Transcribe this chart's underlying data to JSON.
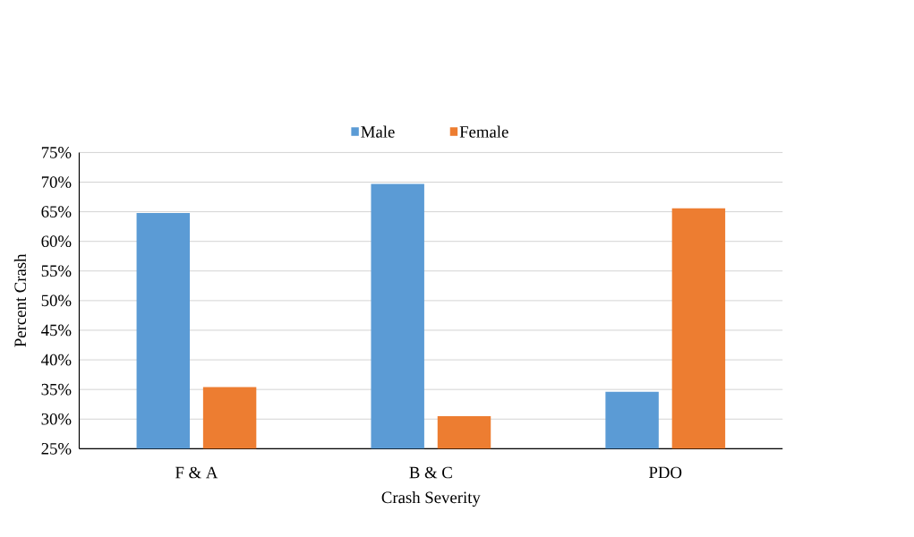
{
  "chart_data": {
    "type": "bar",
    "xlabel": "Crash Severity",
    "ylabel": "Percent Crash",
    "categories": [
      "F & A",
      "B & C",
      "PDO"
    ],
    "series": [
      {
        "name": "Male",
        "color": "#5b9bd5",
        "values": [
          64.8,
          69.7,
          34.6
        ]
      },
      {
        "name": "Female",
        "color": "#ed7d31",
        "values": [
          35.4,
          30.5,
          65.6
        ]
      }
    ],
    "ylim": [
      25,
      75
    ],
    "yticks": [
      {
        "value": 25,
        "label": "25%"
      },
      {
        "value": 30,
        "label": "30%"
      },
      {
        "value": 35,
        "label": "35%"
      },
      {
        "value": 40,
        "label": "40%"
      },
      {
        "value": 45,
        "label": "45%"
      },
      {
        "value": 50,
        "label": "50%"
      },
      {
        "value": 55,
        "label": "55%"
      },
      {
        "value": 60,
        "label": "60%"
      },
      {
        "value": 65,
        "label": "65%"
      },
      {
        "value": 70,
        "label": "70%"
      },
      {
        "value": 75,
        "label": "75%"
      }
    ],
    "grid": "y",
    "legend": "top"
  }
}
